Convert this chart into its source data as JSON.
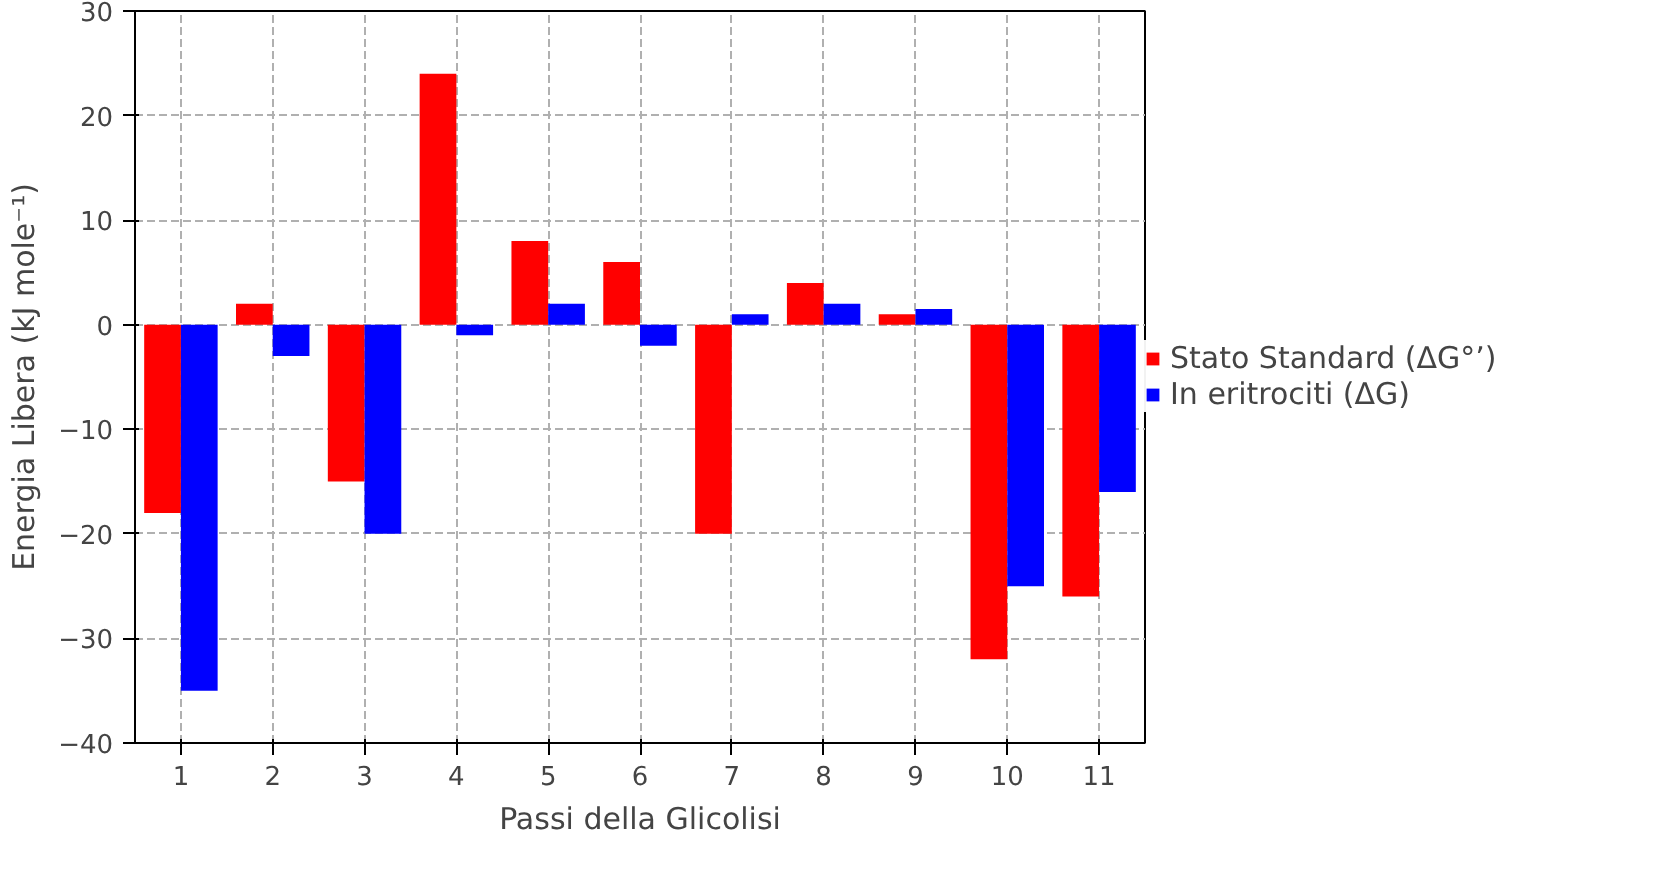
{
  "chart_data": {
    "type": "bar",
    "xlabel": "Passi della Glicolisi",
    "ylabel": "Energia Libera (kJ mole⁻¹)",
    "categories": [
      "1",
      "2",
      "3",
      "4",
      "5",
      "6",
      "7",
      "8",
      "9",
      "10",
      "11"
    ],
    "series": [
      {
        "name": "Stato Standard (ΔG°’)",
        "color": "#ff0000",
        "values": [
          -18,
          2,
          -15,
          24,
          8,
          6,
          -20,
          4,
          1,
          -32,
          -26
        ]
      },
      {
        "name": "In eritrociti (ΔG)",
        "color": "#0000ff",
        "values": [
          -35,
          -3,
          -20,
          -1,
          2,
          -2,
          1,
          2,
          1.5,
          -25,
          -16
        ]
      }
    ],
    "ylim": [
      -40,
      30
    ],
    "yticks": [
      -40,
      -30,
      -20,
      -10,
      0,
      10,
      20,
      30
    ],
    "grid": true,
    "legend": "right"
  }
}
